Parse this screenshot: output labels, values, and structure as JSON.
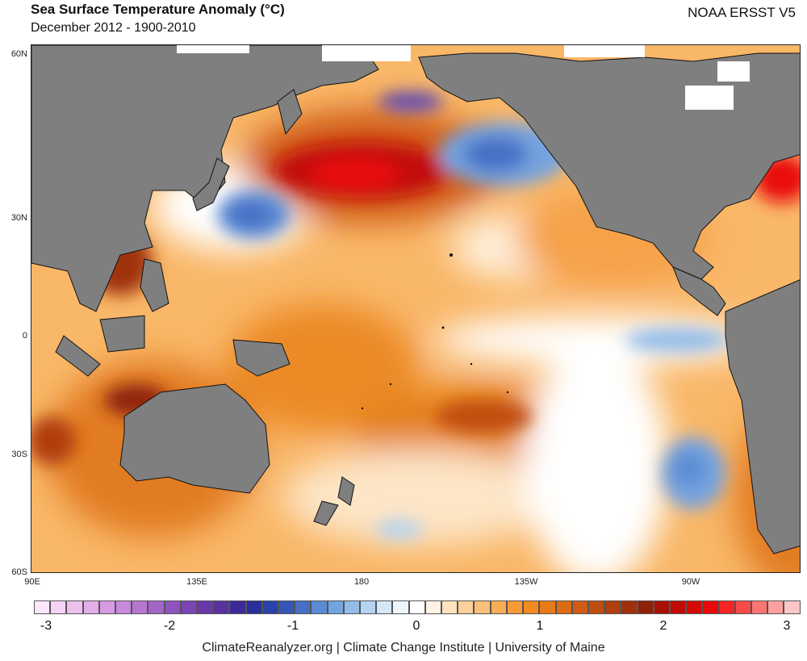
{
  "header": {
    "title": "Sea Surface Temperature Anomaly (°C)",
    "subtitle": "December 2012 - 1900-2010",
    "dataset": "NOAA ERSST V5"
  },
  "axes": {
    "lat_ticks": [
      "60N",
      "30N",
      "0",
      "30S",
      "60S"
    ],
    "lon_ticks": [
      "90E",
      "135E",
      "180",
      "135W",
      "90W"
    ]
  },
  "colorbar": {
    "tick_labels": [
      "-3",
      "-2",
      "-1",
      "0",
      "1",
      "2",
      "3"
    ],
    "colors": [
      "#fde6fc",
      "#f6d2f6",
      "#eec0f0",
      "#e2ade9",
      "#d69be2",
      "#c889db",
      "#b776d2",
      "#a364c8",
      "#8e53bd",
      "#7b44b2",
      "#6a38a8",
      "#59329f",
      "#3d2a99",
      "#2a2f9c",
      "#2a43a9",
      "#3457b6",
      "#4670c5",
      "#5a8ad3",
      "#75a3df",
      "#93bce9",
      "#b4d4f2",
      "#d4e8f8",
      "#eef6fc",
      "#ffffff",
      "#fff3e4",
      "#fde2bd",
      "#fcd09a",
      "#fbbf77",
      "#f9ad55",
      "#f79b36",
      "#f28a1f",
      "#e87a17",
      "#dc6b14",
      "#cf5c12",
      "#c04d10",
      "#b03e0e",
      "#a0300c",
      "#8e210a",
      "#a81108",
      "#c00a06",
      "#d60806",
      "#e90909",
      "#f52525",
      "#f94a4a",
      "#fb7575",
      "#fca0a0",
      "#fdc7c7"
    ]
  },
  "legend_meaning": {
    "cold_color": "#4670c5",
    "warm_color": "#dc6b14",
    "hot_color": "#d60806",
    "land_color": "#7f7f7f",
    "neutral_color": "#ffffff"
  },
  "footer": {
    "credits": "ClimateReanalyzer.org | Climate Change Institute | University of Maine"
  }
}
